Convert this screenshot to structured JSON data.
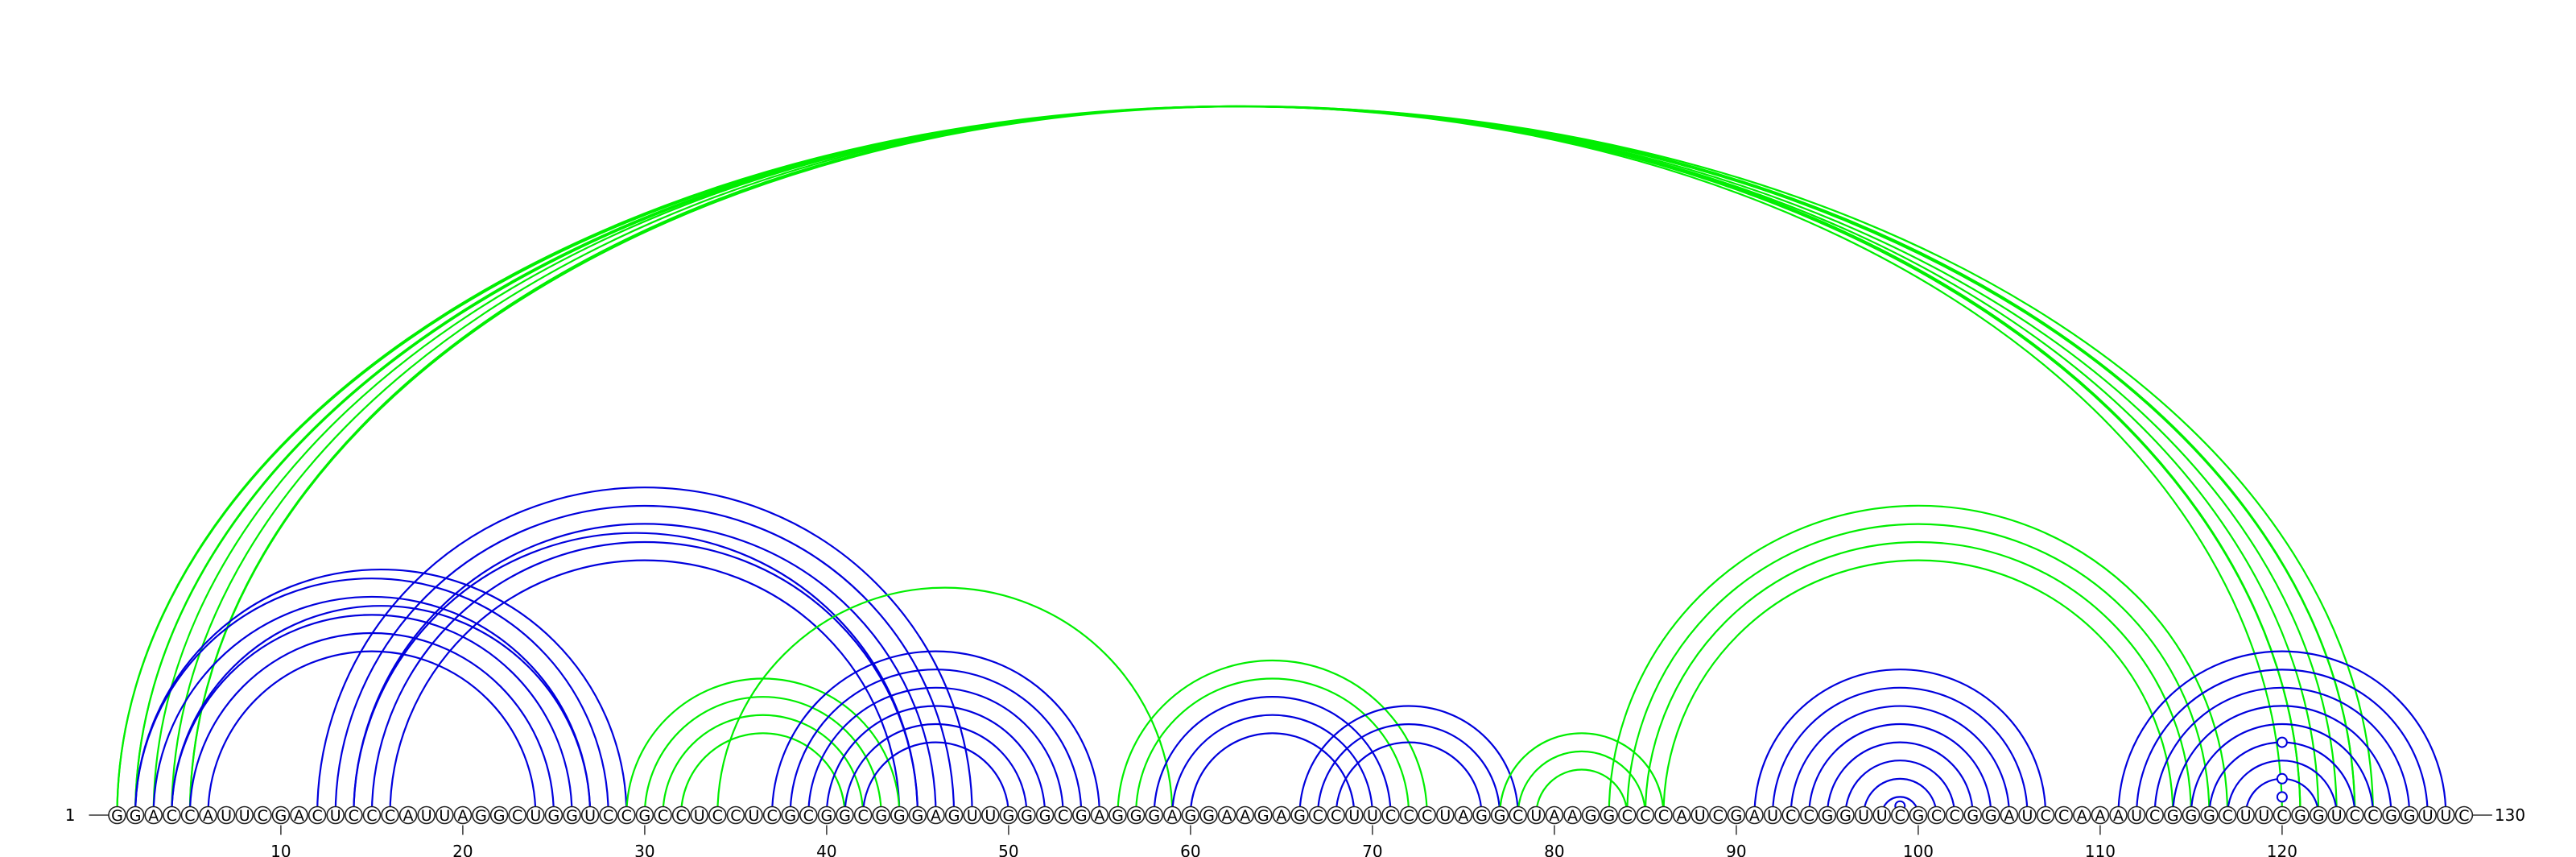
{
  "sequence": "GGACCAUUCGACUCCCAUUAGGCUGGUCCGCCUCCUCGCGGCGGGAGUUGGGCGAGGGAGGAAGAGCCUUCCCUAGGCUAAGGCCCAUCGAUCCGGUUCGCCGGAUCCAAAUCGGGCUUCGGUCCGGUUC",
  "start_label": "1",
  "end_label": "130",
  "tick_positions": [
    10,
    20,
    30,
    40,
    50,
    60,
    70,
    80,
    90,
    100,
    110,
    120
  ],
  "colors": {
    "pair_a": "#0000dd",
    "pair_b": "#00ee00"
  },
  "arcs": [
    {
      "i": 1,
      "j": 124,
      "color": "green"
    },
    {
      "i": 1,
      "j": 125,
      "color": "green"
    },
    {
      "i": 2,
      "j": 123,
      "color": "green"
    },
    {
      "i": 2,
      "j": 124,
      "color": "green"
    },
    {
      "i": 3,
      "j": 122,
      "color": "green"
    },
    {
      "i": 4,
      "j": 121,
      "color": "green"
    },
    {
      "i": 5,
      "j": 120,
      "color": "green"
    },
    {
      "i": 5,
      "j": 121,
      "color": "green"
    },
    {
      "i": 2,
      "j": 29,
      "color": "blue"
    },
    {
      "i": 2,
      "j": 28,
      "color": "blue"
    },
    {
      "i": 3,
      "j": 27,
      "color": "blue"
    },
    {
      "i": 4,
      "j": 27,
      "color": "blue"
    },
    {
      "i": 4,
      "j": 26,
      "color": "blue"
    },
    {
      "i": 5,
      "j": 25,
      "color": "blue"
    },
    {
      "i": 6,
      "j": 24,
      "color": "blue"
    },
    {
      "i": 12,
      "j": 48,
      "color": "blue"
    },
    {
      "i": 13,
      "j": 47,
      "color": "blue"
    },
    {
      "i": 14,
      "j": 46,
      "color": "blue"
    },
    {
      "i": 14,
      "j": 45,
      "color": "blue"
    },
    {
      "i": 15,
      "j": 45,
      "color": "blue"
    },
    {
      "i": 16,
      "j": 44,
      "color": "blue"
    },
    {
      "i": 29,
      "j": 44,
      "color": "green"
    },
    {
      "i": 30,
      "j": 43,
      "color": "green"
    },
    {
      "i": 31,
      "j": 42,
      "color": "green"
    },
    {
      "i": 32,
      "j": 41,
      "color": "green"
    },
    {
      "i": 34,
      "j": 59,
      "color": "green"
    },
    {
      "i": 37,
      "j": 55,
      "color": "blue"
    },
    {
      "i": 38,
      "j": 54,
      "color": "blue"
    },
    {
      "i": 39,
      "j": 53,
      "color": "blue"
    },
    {
      "i": 40,
      "j": 52,
      "color": "blue"
    },
    {
      "i": 41,
      "j": 51,
      "color": "blue"
    },
    {
      "i": 42,
      "j": 50,
      "color": "blue"
    },
    {
      "i": 56,
      "j": 73,
      "color": "green"
    },
    {
      "i": 57,
      "j": 72,
      "color": "green"
    },
    {
      "i": 58,
      "j": 71,
      "color": "blue"
    },
    {
      "i": 59,
      "j": 70,
      "color": "blue"
    },
    {
      "i": 60,
      "j": 69,
      "color": "blue"
    },
    {
      "i": 66,
      "j": 78,
      "color": "blue"
    },
    {
      "i": 67,
      "j": 77,
      "color": "blue"
    },
    {
      "i": 68,
      "j": 76,
      "color": "blue"
    },
    {
      "i": 77,
      "j": 86,
      "color": "green"
    },
    {
      "i": 78,
      "j": 85,
      "color": "green"
    },
    {
      "i": 79,
      "j": 84,
      "color": "green"
    },
    {
      "i": 83,
      "j": 117,
      "color": "green"
    },
    {
      "i": 84,
      "j": 116,
      "color": "green"
    },
    {
      "i": 85,
      "j": 115,
      "color": "green"
    },
    {
      "i": 86,
      "j": 114,
      "color": "green"
    },
    {
      "i": 91,
      "j": 107,
      "color": "blue"
    },
    {
      "i": 92,
      "j": 106,
      "color": "blue"
    },
    {
      "i": 93,
      "j": 105,
      "color": "blue"
    },
    {
      "i": 94,
      "j": 104,
      "color": "blue"
    },
    {
      "i": 95,
      "j": 103,
      "color": "blue"
    },
    {
      "i": 96,
      "j": 102,
      "color": "blue"
    },
    {
      "i": 97,
      "j": 101,
      "color": "blue"
    },
    {
      "i": 98,
      "j": 100,
      "color": "blue"
    },
    {
      "i": 111,
      "j": 129,
      "color": "blue"
    },
    {
      "i": 112,
      "j": 128,
      "color": "blue"
    },
    {
      "i": 113,
      "j": 127,
      "color": "blue"
    },
    {
      "i": 114,
      "j": 126,
      "color": "blue"
    },
    {
      "i": 115,
      "j": 125,
      "color": "blue"
    },
    {
      "i": 116,
      "j": 124,
      "color": "blue"
    },
    {
      "i": 117,
      "j": 123,
      "color": "blue"
    },
    {
      "i": 118,
      "j": 122,
      "color": "blue"
    }
  ],
  "markers": [
    {
      "center": 120,
      "span": 8
    },
    {
      "center": 120,
      "span": 4
    },
    {
      "center": 120,
      "span": 2
    },
    {
      "center": 99,
      "span": 1
    }
  ]
}
